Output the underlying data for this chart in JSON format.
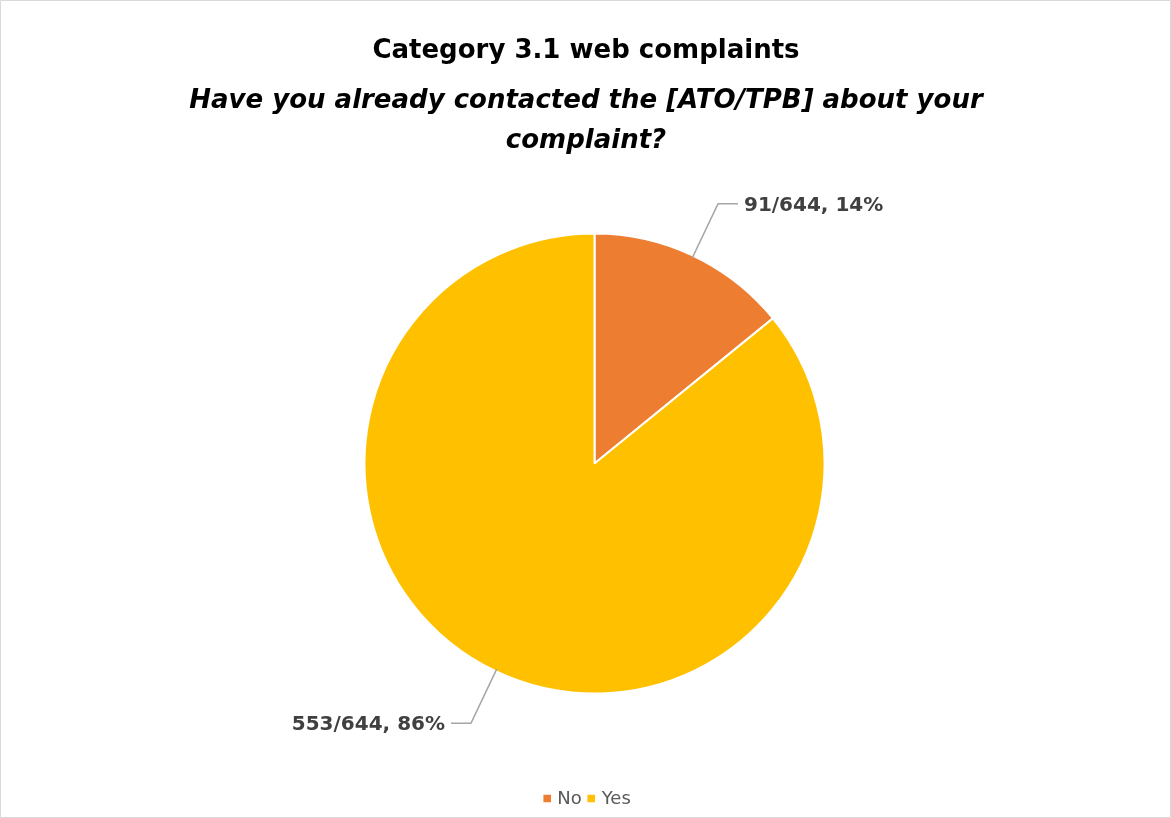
{
  "chart_data": {
    "type": "pie",
    "title": "Category 3.1 web complaints",
    "subtitle": "Have you already contacted the [ATO/TPB] about your complaint?",
    "categories": [
      "No",
      "Yes"
    ],
    "values": [
      91,
      553
    ],
    "colors": [
      "#ed7d31",
      "#ffc000"
    ],
    "value_labels": [
      "91/644, 14%",
      "553/644, 86%"
    ],
    "legend": "bottom"
  }
}
